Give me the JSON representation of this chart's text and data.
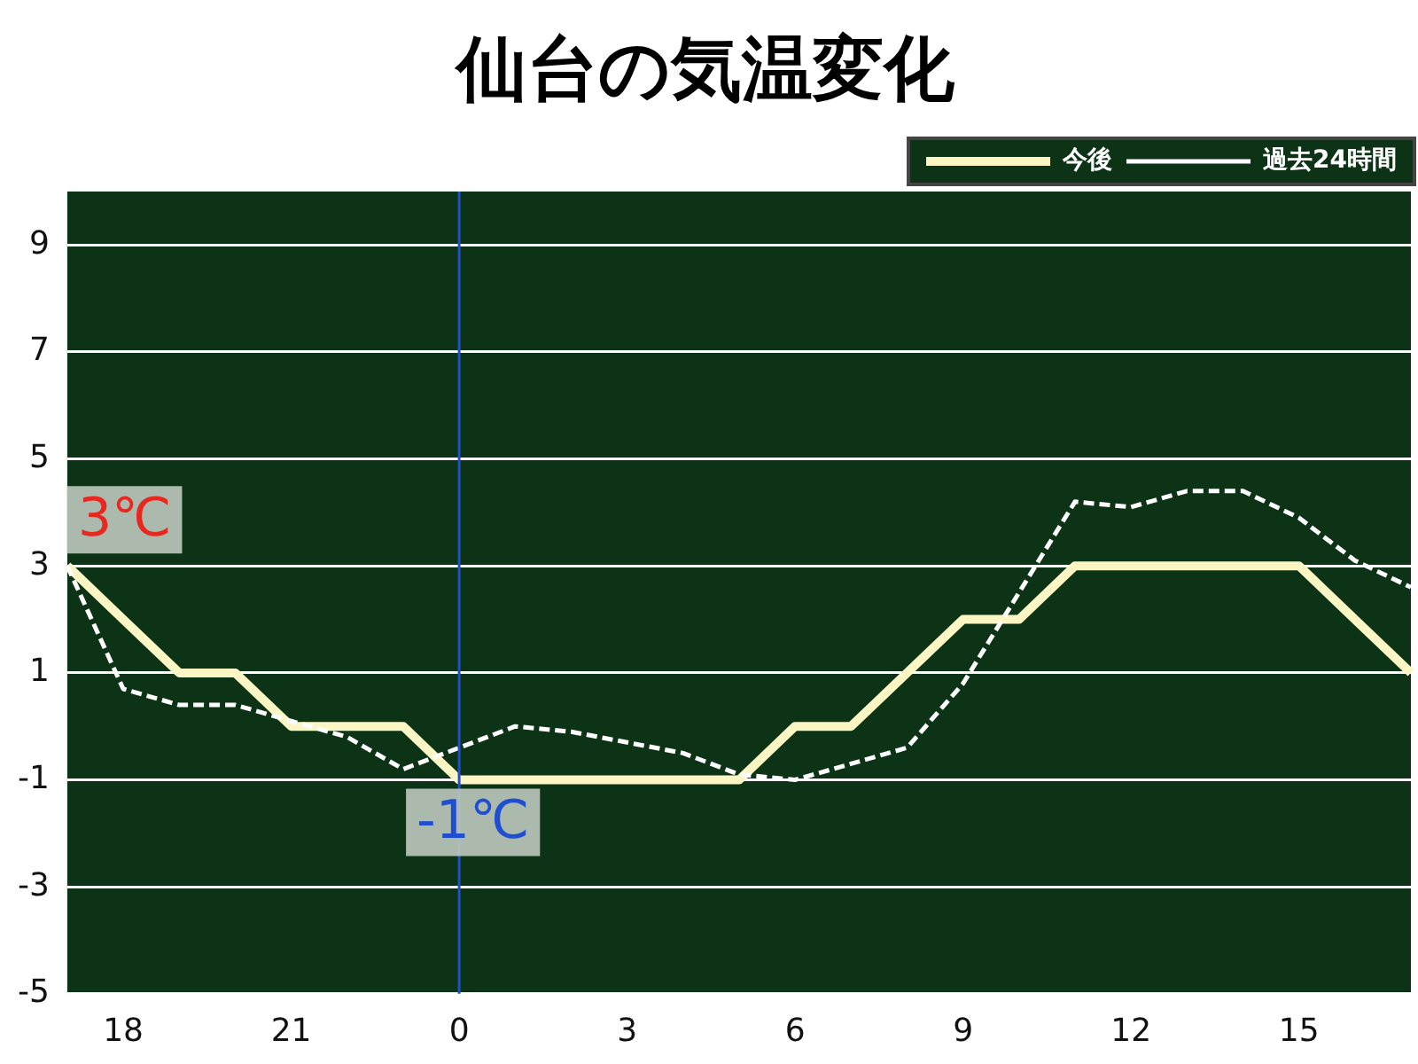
{
  "chart_data": {
    "type": "line",
    "title": "仙台の気温変化",
    "categories": [
      null,
      "18",
      null,
      null,
      "21",
      null,
      null,
      "0",
      null,
      null,
      "3",
      null,
      null,
      "6",
      null,
      null,
      "9",
      null,
      null,
      "12",
      null,
      null,
      "15",
      null,
      null
    ],
    "series": [
      {
        "name": "今後",
        "color": "#fbf6c4",
        "line_style": "solid",
        "values": [
          3,
          2,
          1,
          1,
          0,
          0,
          0,
          -1,
          -1,
          -1,
          -1,
          -1,
          -1,
          0,
          0,
          1,
          2,
          2,
          3,
          3,
          3,
          3,
          3,
          2,
          1
        ]
      },
      {
        "name": "過去24時間",
        "color": "#ffffff",
        "line_style": "dashed",
        "values": [
          3,
          0.7,
          0.4,
          0.4,
          0.1,
          -0.2,
          -0.8,
          -0.4,
          0.0,
          -0.1,
          -0.3,
          -0.5,
          -0.9,
          -1.0,
          -0.7,
          -0.4,
          0.8,
          2.5,
          4.2,
          4.1,
          4.4,
          4.4,
          3.9,
          3.1,
          2.6
        ]
      }
    ],
    "ylim": [
      -5,
      10
    ],
    "yticks": [
      -5,
      -3,
      -1,
      1,
      3,
      5,
      7,
      9
    ],
    "grid": "y",
    "legend": "top right",
    "marker": "none",
    "ref_lines": [
      {
        "axis": "x",
        "value": "0",
        "color": "#1f4fd0"
      }
    ],
    "annotations": [
      "3℃",
      {
        "text": "-1℃",
        "x": "0",
        "y": -1
      }
    ]
  }
}
